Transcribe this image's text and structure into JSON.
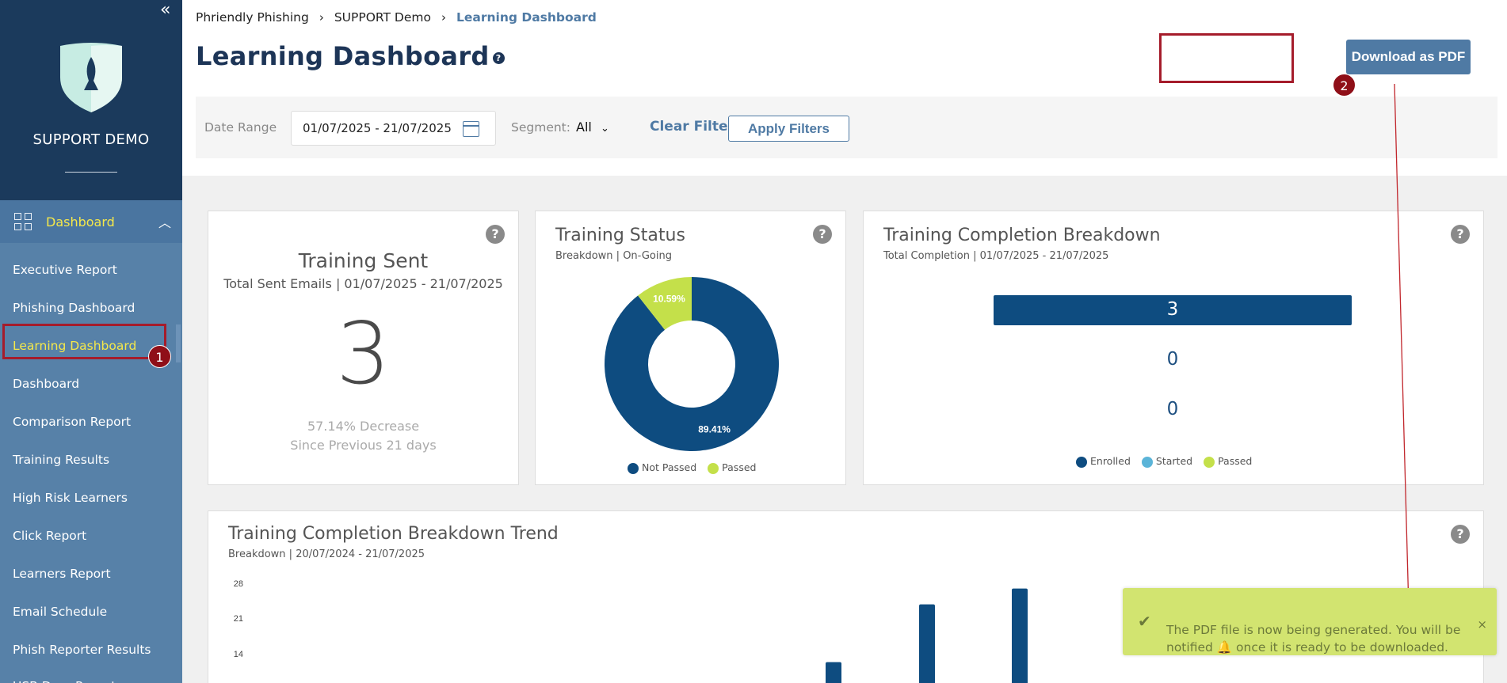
{
  "sidebar": {
    "brand": "SUPPORT DEMO",
    "collapse_glyph": "«",
    "dashboard_label": "Dashboard",
    "items": [
      {
        "label": "Executive Report"
      },
      {
        "label": "Phishing Dashboard"
      },
      {
        "label": "Learning Dashboard"
      },
      {
        "label": "Dashboard"
      },
      {
        "label": "Comparison Report"
      },
      {
        "label": "Training Results"
      },
      {
        "label": "High Risk Learners"
      },
      {
        "label": "Click Report"
      },
      {
        "label": "Learners Report"
      },
      {
        "label": "Email Schedule"
      },
      {
        "label": "Phish Reporter Results"
      },
      {
        "label": "USB Drop Report"
      }
    ],
    "active_index": 2
  },
  "annotations": {
    "step1": "1",
    "step2": "2"
  },
  "breadcrumb": [
    "Phriendly Phishing",
    "SUPPORT Demo",
    "Learning Dashboard"
  ],
  "page_title": "Learning Dashboard",
  "download_label": "Download as PDF",
  "filters": {
    "date_range_label": "Date Range",
    "date_range_value": "01/07/2025 - 21/07/2025",
    "segment_label": "Segment:",
    "segment_value": "All",
    "clear_label": "Clear Filters",
    "apply_label": "Apply Filters"
  },
  "training_sent": {
    "title": "Training Sent",
    "subtitle": "Total Sent Emails | 01/07/2025 - 21/07/2025",
    "value": "3",
    "change": "57.14% Decrease",
    "period": "Since Previous 21 days"
  },
  "training_status": {
    "title": "Training Status",
    "subtitle": "Breakdown | On-Going",
    "legend": [
      "Not Passed",
      "Passed"
    ]
  },
  "completion_breakdown": {
    "title": "Training Completion Breakdown",
    "subtitle": "Total Completion | 01/07/2025 - 21/07/2025",
    "legend": [
      "Enrolled",
      "Started",
      "Passed"
    ]
  },
  "trend": {
    "title": "Training Completion Breakdown Trend",
    "subtitle": "Breakdown | 20/07/2024 - 21/07/2025"
  },
  "toast": {
    "message_part1": "The PDF file is now being generated. You will be notified",
    "message_part2": "once it is ready to be downloaded.",
    "close": "×"
  },
  "colors": {
    "navy": "#0e4c80",
    "lime": "#c4e04a",
    "light_blue": "#5bb4d8",
    "annotation_red": "#a51c2b"
  },
  "chart_data": [
    {
      "type": "pie",
      "title": "Training Status",
      "categories": [
        "Not Passed",
        "Passed"
      ],
      "values": [
        89.41,
        10.59
      ],
      "labels": [
        "89.41%",
        "10.59%"
      ]
    },
    {
      "type": "bar",
      "title": "Training Completion Breakdown",
      "categories": [
        "Enrolled",
        "Started",
        "Passed"
      ],
      "values": [
        3,
        0,
        0
      ]
    },
    {
      "type": "bar",
      "title": "Training Completion Breakdown Trend",
      "y_ticks": [
        "28",
        "21",
        "14"
      ],
      "ylim": [
        0,
        28
      ],
      "values": [
        13,
        24,
        27
      ]
    }
  ]
}
